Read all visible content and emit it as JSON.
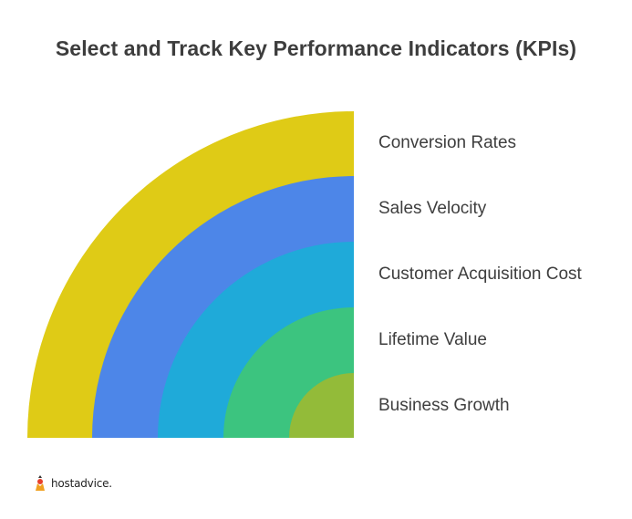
{
  "title": "Select and Track Key Performance Indicators (KPIs)",
  "layers": [
    {
      "label": "Conversion Rates",
      "color": "#dfcb16"
    },
    {
      "label": "Sales Velocity",
      "color": "#4d86e8"
    },
    {
      "label": "Customer Acquisition Cost",
      "color": "#1faad9"
    },
    {
      "label": "Lifetime Value",
      "color": "#3cc47f"
    },
    {
      "label": "Business Growth",
      "color": "#93bb39"
    }
  ],
  "logo": {
    "text": "hostadvice."
  }
}
